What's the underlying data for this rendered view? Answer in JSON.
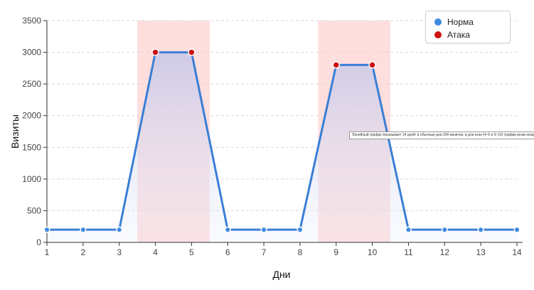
{
  "chart_data": {
    "type": "line",
    "x": [
      1,
      2,
      3,
      4,
      5,
      6,
      7,
      8,
      9,
      10,
      11,
      12,
      13,
      14
    ],
    "values": [
      200,
      200,
      200,
      3000,
      3000,
      200,
      200,
      200,
      2800,
      2800,
      200,
      200,
      200,
      200
    ],
    "attack_days": [
      4,
      5,
      9,
      10
    ],
    "highlight_ranges": [
      [
        3.5,
        5.5
      ],
      [
        8.5,
        10.5
      ]
    ],
    "xlabel": "Дни",
    "ylabel": "Визиты",
    "ylim": [
      0,
      3500
    ],
    "yticks": [
      0,
      500,
      1000,
      1500,
      2000,
      2500,
      3000,
      3500
    ],
    "xticks": [
      1,
      2,
      3,
      4,
      5,
      6,
      7,
      8,
      9,
      10,
      11,
      12,
      13,
      14
    ],
    "grid": "horizontal-dashed",
    "legend_position": "top-right",
    "legend": [
      {
        "label": "Норма",
        "color": "#3f8ae0"
      },
      {
        "label": "Атака",
        "color": "#cc1111"
      }
    ],
    "colors": {
      "line": "#3a7fd5",
      "area": "#cdd8f0",
      "highlight": "#ffdede",
      "normal_point": "#3f8ae0",
      "attack_point": "#cc1111"
    }
  },
  "tooltip_text": "Линейный график показывает 14 дней: в обычные дни 200 визитов, в дни атак (4–5 и 9–10) трафик резко возрастает"
}
